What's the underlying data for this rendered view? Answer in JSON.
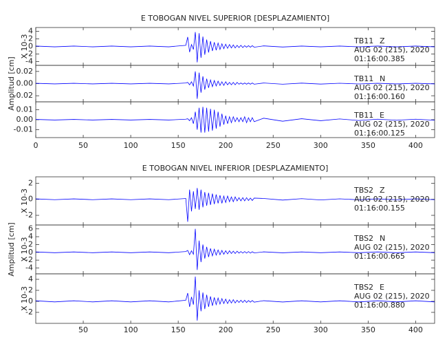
{
  "chart_data": [
    {
      "type": "line",
      "title": "E TOBOGAN NIVEL SUPERIOR [DESPLAZAMIENTO]",
      "ylabel": "Amplitud [cm]",
      "x": [
        0,
        20,
        40,
        60,
        80,
        100,
        120,
        140,
        158,
        160,
        162,
        164,
        166,
        168,
        170,
        172,
        174,
        176,
        178,
        180,
        182,
        184,
        186,
        188,
        190,
        192,
        194,
        196,
        198,
        200,
        202,
        204,
        206,
        208,
        210,
        212,
        214,
        216,
        218,
        220,
        222,
        224,
        226,
        228,
        230,
        240,
        260,
        280,
        300,
        320,
        340,
        360,
        380,
        400,
        420
      ],
      "xlim": [
        0,
        420
      ],
      "xticks": [
        0,
        50,
        100,
        150,
        200,
        250,
        300,
        350,
        400
      ],
      "panels": [
        {
          "station": "TB11",
          "component": "Z",
          "date": "AUG 02 (215), 2020",
          "time": "01:16:00.385",
          "scale_label": "X 10-3",
          "color": "#0000ff",
          "ylim": [
            -5,
            5
          ],
          "yticks": [
            4,
            2,
            0,
            -2,
            -4
          ],
          "values": [
            0.1,
            -0.1,
            0.1,
            -0.1,
            0.1,
            -0.1,
            0.1,
            -0.1,
            0.3,
            2.5,
            -1.5,
            0.5,
            -0.8,
            3.8,
            -4.2,
            3.5,
            -3.0,
            2.6,
            -2.2,
            1.8,
            -1.6,
            1.4,
            -1.2,
            1.1,
            -1.0,
            0.9,
            -0.8,
            0.7,
            -0.6,
            0.6,
            -0.5,
            0.5,
            -0.4,
            0.4,
            -0.4,
            0.3,
            -0.3,
            0.3,
            -0.3,
            0.2,
            -0.2,
            0.2,
            -0.2,
            0.2,
            -0.2,
            0.15,
            -0.15,
            0.1,
            -0.1,
            0.1,
            -0.1,
            0.1,
            -0.1,
            0.1,
            -0.1
          ]
        },
        {
          "station": "TB11",
          "component": "N",
          "date": "AUG 02 (215), 2020",
          "time": "01:16:00.160",
          "color": "#0000ff",
          "ylim": [
            -0.03,
            0.03
          ],
          "yticks": [
            0.02,
            {
              "value": 0,
              "label": "0.00"
            },
            -0.02
          ],
          "values": [
            0.0005,
            -0.0005,
            0.0005,
            -0.0005,
            0.0005,
            -0.0005,
            0.0005,
            -0.0005,
            0.001,
            0.002,
            -0.002,
            0.003,
            -0.004,
            0.02,
            -0.025,
            0.018,
            -0.015,
            0.012,
            -0.01,
            0.008,
            -0.007,
            0.006,
            -0.005,
            0.005,
            -0.004,
            0.004,
            -0.003,
            0.003,
            -0.003,
            0.003,
            -0.002,
            0.002,
            -0.002,
            0.002,
            -0.002,
            0.002,
            -0.001,
            0.001,
            -0.001,
            0.001,
            -0.001,
            0.001,
            -0.001,
            0.001,
            -0.001,
            0.001,
            -0.001,
            0.0008,
            -0.0008,
            0.0006,
            -0.0006,
            0.0005,
            -0.0005,
            0.0005,
            -0.0005
          ]
        },
        {
          "station": "TB11",
          "component": "E",
          "date": "AUG 02 (215), 2020",
          "time": "01:16:00.125",
          "color": "#0000ff",
          "ylim": [
            -0.018,
            0.018
          ],
          "yticks": [
            0.01,
            {
              "value": 0,
              "label": "0.00"
            },
            -0.01
          ],
          "values": [
            0.0003,
            -0.0003,
            0.0003,
            -0.0003,
            0.0003,
            -0.0003,
            0.0003,
            -0.0003,
            0.0005,
            0.001,
            -0.001,
            0.002,
            -0.004,
            0.008,
            -0.01,
            0.012,
            -0.013,
            0.013,
            -0.013,
            0.012,
            -0.012,
            0.011,
            -0.011,
            0.01,
            -0.009,
            0.008,
            -0.007,
            0.006,
            -0.005,
            0.004,
            -0.004,
            0.003,
            -0.003,
            0.003,
            -0.002,
            0.002,
            -0.002,
            0.002,
            -0.002,
            0.003,
            -0.003,
            0.002,
            -0.002,
            0.002,
            -0.002,
            0.0015,
            -0.0015,
            0.001,
            -0.001,
            0.0008,
            -0.0008,
            0.0005,
            -0.0005,
            0.0005,
            -0.0005
          ]
        }
      ]
    },
    {
      "type": "line",
      "title": "E TOBOGAN NIVEL INFERIOR [DESPLAZAMIENTO]",
      "ylabel": "Amplitud [cm]",
      "x": [
        0,
        20,
        40,
        60,
        80,
        100,
        120,
        140,
        158,
        160,
        162,
        164,
        166,
        168,
        170,
        172,
        174,
        176,
        178,
        180,
        182,
        184,
        186,
        188,
        190,
        192,
        194,
        196,
        198,
        200,
        202,
        204,
        206,
        208,
        210,
        212,
        214,
        216,
        218,
        220,
        222,
        224,
        226,
        228,
        230,
        240,
        260,
        280,
        300,
        320,
        340,
        360,
        380,
        400,
        420
      ],
      "xlim": [
        0,
        420
      ],
      "xticks": [
        50,
        100,
        150,
        200,
        250,
        300,
        350,
        400
      ],
      "panels": [
        {
          "station": "TBS2",
          "component": "Z",
          "date": "AUG 02 (215), 2020",
          "time": "01:16:00.155",
          "scale_label": "X 10-3",
          "color": "#0000ff",
          "ylim": [
            -3.2,
            2.8
          ],
          "yticks": [
            2,
            0,
            -2
          ],
          "values": [
            0.05,
            -0.05,
            0.05,
            -0.05,
            0.05,
            -0.05,
            0.05,
            -0.05,
            0.1,
            -2.8,
            1.2,
            -1.5,
            1.0,
            -1.2,
            1.4,
            -1.3,
            1.2,
            -1.0,
            0.9,
            -0.8,
            0.8,
            -0.7,
            0.7,
            -0.6,
            0.6,
            -0.5,
            0.5,
            -0.5,
            0.4,
            -0.4,
            0.4,
            -0.3,
            0.3,
            -0.3,
            0.3,
            -0.2,
            0.2,
            -0.2,
            0.2,
            -0.2,
            0.2,
            -0.15,
            0.15,
            -0.15,
            0.15,
            0.1,
            -0.1,
            0.08,
            -0.08,
            0.06,
            -0.06,
            0.05,
            -0.05,
            0.05,
            -0.05
          ]
        },
        {
          "station": "TBS2",
          "component": "N",
          "date": "AUG 02 (215), 2020",
          "time": "01:16:00.665",
          "scale_label": "X 10-3",
          "color": "#0000ff",
          "ylim": [
            -5.5,
            7
          ],
          "yticks": [
            6,
            4,
            2,
            0,
            -2,
            -4
          ],
          "values": [
            0.1,
            -0.1,
            0.1,
            -0.1,
            0.1,
            -0.1,
            0.1,
            -0.1,
            0.2,
            0.5,
            -0.6,
            0.4,
            -0.5,
            6,
            -4.5,
            3.0,
            -2.5,
            2.0,
            -1.6,
            1.4,
            -1.2,
            1.0,
            -0.9,
            0.8,
            -0.7,
            0.6,
            -0.6,
            0.5,
            -0.5,
            0.4,
            -0.4,
            0.4,
            -0.3,
            0.3,
            -0.3,
            0.3,
            -0.2,
            0.2,
            -0.2,
            0.2,
            -0.2,
            0.2,
            -0.2,
            0.15,
            -0.15,
            0.12,
            -0.12,
            0.1,
            -0.1,
            0.1,
            -0.1,
            0.1,
            -0.1,
            0.1,
            -0.1
          ]
        },
        {
          "station": "TBS2",
          "component": "E",
          "date": "AUG 02 (215), 2020",
          "time": "01:16:00.880",
          "scale_label": "X 10-3",
          "color": "#0000ff",
          "ylim": [
            -4,
            5
          ],
          "yticks": [
            4,
            2,
            0,
            -2
          ],
          "values": [
            0.1,
            -0.1,
            0.1,
            -0.1,
            0.1,
            -0.1,
            0.1,
            -0.1,
            0.2,
            1.5,
            -1.0,
            0.8,
            -0.6,
            4.5,
            -3.5,
            2.0,
            -1.8,
            1.6,
            -1.4,
            1.2,
            -1.0,
            0.9,
            -0.8,
            0.7,
            -0.6,
            0.6,
            -0.5,
            0.5,
            -0.4,
            0.4,
            -0.4,
            0.3,
            -0.3,
            0.3,
            -0.3,
            0.2,
            -0.2,
            0.2,
            -0.2,
            0.2,
            -0.2,
            0.15,
            -0.15,
            0.15,
            -0.15,
            0.12,
            -0.12,
            0.1,
            -0.1,
            0.1,
            -0.1,
            0.1,
            -0.1,
            0.1,
            -0.1
          ]
        }
      ]
    }
  ]
}
